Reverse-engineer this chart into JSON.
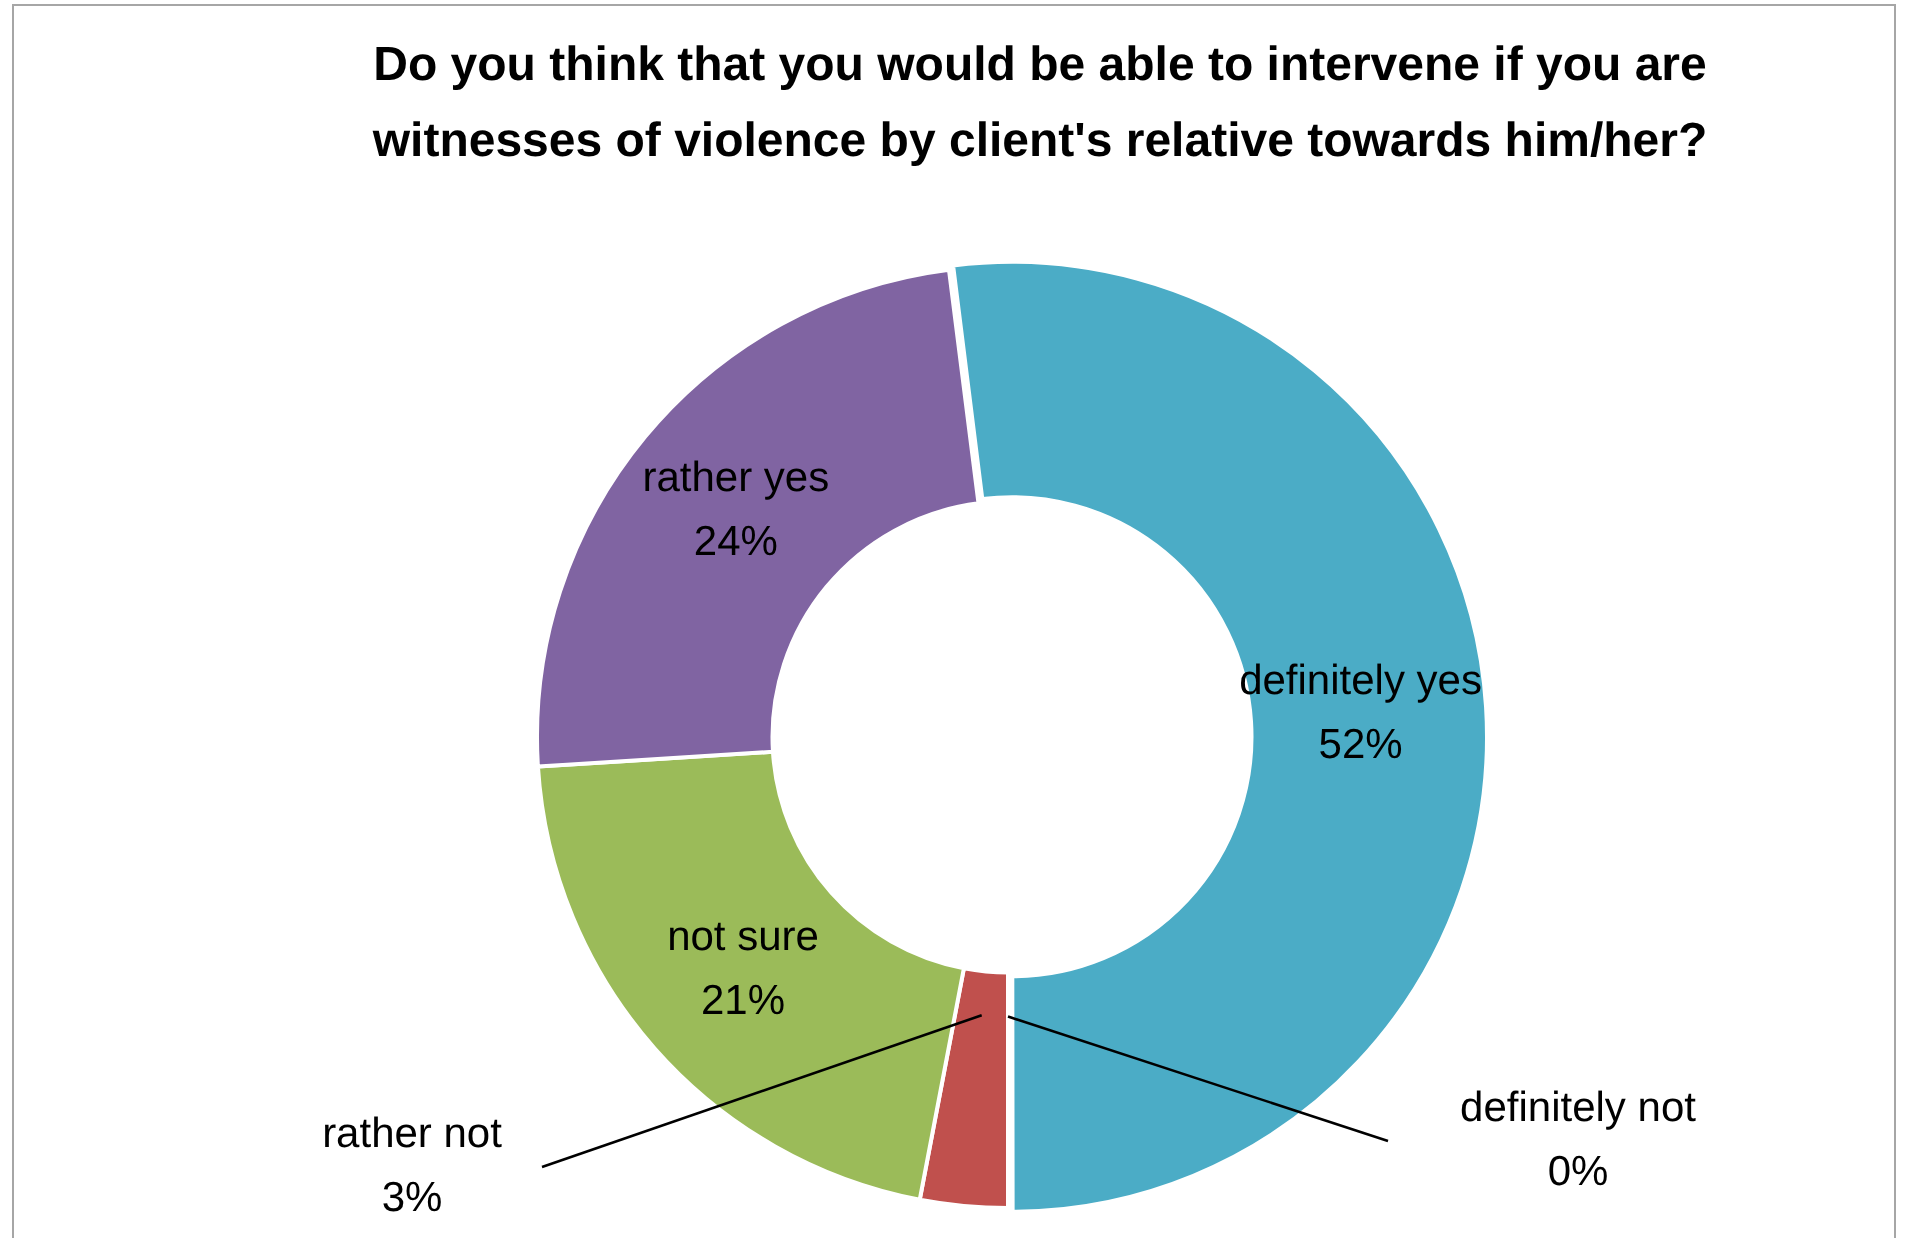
{
  "chart_data": {
    "type": "donut",
    "title": "Do you think that you would be able to intervene if you are witnesses of violence by client's relative towards him/her?",
    "categories": [
      "definitely yes",
      "definitely not",
      "rather not",
      "not sure",
      "rather yes"
    ],
    "values": [
      52,
      0,
      3,
      21,
      24
    ],
    "colors": [
      "#4bacc6",
      "#f79646",
      "#c0504d",
      "#9bbb59",
      "#8064a2"
    ],
    "value_labels": [
      "52%",
      "0%",
      "3%",
      "21%",
      "24%"
    ],
    "legend": false
  }
}
